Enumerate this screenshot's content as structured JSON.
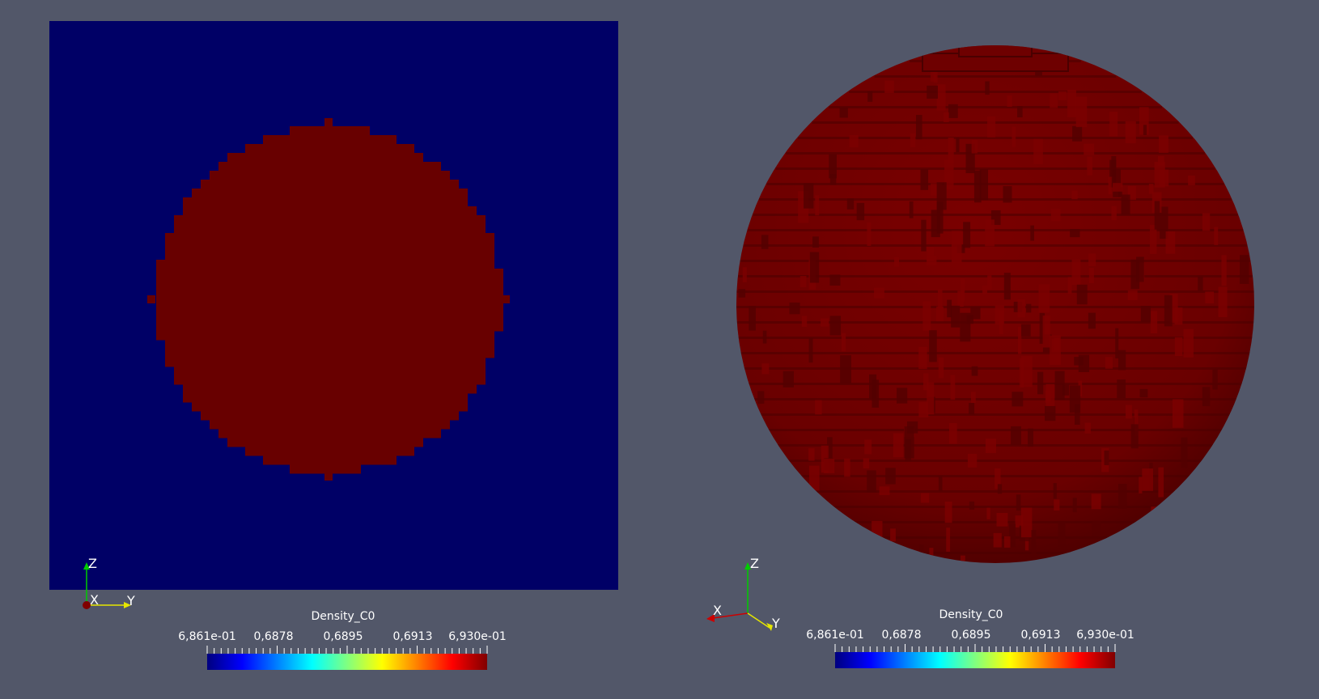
{
  "views": [
    {
      "id": "left",
      "title": "Density_C0",
      "colorbar": {
        "labels": [
          "6,861e-01",
          "0,6878",
          "0,6895",
          "0,6913",
          "6,930e-01"
        ],
        "colors": [
          "#00007f",
          "#0000ff",
          "#0080ff",
          "#00ffff",
          "#80ff80",
          "#ffff00",
          "#ff8000",
          "#ff0000",
          "#800000"
        ]
      },
      "axes": {
        "x": "X",
        "y": "Y",
        "z": "Z"
      }
    },
    {
      "id": "right",
      "title": "Density_C0",
      "colorbar": {
        "labels": [
          "6,861e-01",
          "0,6878",
          "0,6895",
          "0,6913",
          "6,930e-01"
        ],
        "colors": [
          "#00007f",
          "#0000ff",
          "#0080ff",
          "#00ffff",
          "#80ff80",
          "#ffff00",
          "#ff8000",
          "#ff0000",
          "#800000"
        ]
      },
      "axes": {
        "x": "X",
        "y": "Y",
        "z": "Z"
      }
    }
  ],
  "colors": {
    "background": "#525769",
    "slice_background": "#000066",
    "sphere": "#680000"
  }
}
